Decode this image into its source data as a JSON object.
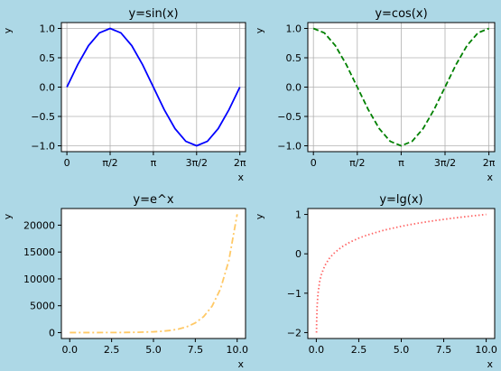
{
  "chart_data": [
    {
      "id": "sin",
      "type": "line",
      "title": "y=sin(x)",
      "xlabel": "x",
      "ylabel": "y",
      "grid": true,
      "xlim": [
        -0.2,
        6.49
      ],
      "ylim": [
        -1.1,
        1.1
      ],
      "xticks": [
        0,
        1.5708,
        3.1416,
        4.7124,
        6.2832
      ],
      "xticklabels": [
        "0",
        "π/2",
        "π",
        "3π/2",
        "2π"
      ],
      "yticks": [
        -1.0,
        -0.5,
        0.0,
        0.5,
        1.0
      ],
      "yticklabels": [
        "−1.0",
        "−0.5",
        "0.0",
        "0.5",
        "1.0"
      ],
      "series": [
        {
          "color": "#0000ff",
          "linestyle": "solid",
          "x": [
            0,
            0.3927,
            0.7854,
            1.1781,
            1.5708,
            1.9635,
            2.3562,
            2.7489,
            3.1416,
            3.5343,
            3.927,
            4.3197,
            4.7124,
            5.1051,
            5.4978,
            5.8905,
            6.2832
          ],
          "y": [
            0,
            0.383,
            0.707,
            0.924,
            1.0,
            0.924,
            0.707,
            0.383,
            0,
            -0.383,
            -0.707,
            -0.924,
            -1.0,
            -0.924,
            -0.707,
            -0.383,
            0
          ]
        }
      ]
    },
    {
      "id": "cos",
      "type": "line",
      "title": "y=cos(x)",
      "xlabel": "x",
      "ylabel": "y",
      "grid": true,
      "xlim": [
        -0.2,
        6.49
      ],
      "ylim": [
        -1.1,
        1.1
      ],
      "xticks": [
        0,
        1.5708,
        3.1416,
        4.7124,
        6.2832
      ],
      "xticklabels": [
        "0",
        "π/2",
        "π",
        "3π/2",
        "2π"
      ],
      "yticks": [
        -1.0,
        -0.5,
        0.0,
        0.5,
        1.0
      ],
      "yticklabels": [
        "−1.0",
        "−0.5",
        "0.0",
        "0.5",
        "1.0"
      ],
      "series": [
        {
          "color": "#008000",
          "linestyle": "dashed",
          "x": [
            0,
            0.3927,
            0.7854,
            1.1781,
            1.5708,
            1.9635,
            2.3562,
            2.7489,
            3.1416,
            3.5343,
            3.927,
            4.3197,
            4.7124,
            5.1051,
            5.4978,
            5.8905,
            6.2832
          ],
          "y": [
            1.0,
            0.924,
            0.707,
            0.383,
            0,
            -0.383,
            -0.707,
            -0.924,
            -1.0,
            -0.924,
            -0.707,
            -0.383,
            0,
            0.383,
            0.707,
            0.924,
            1.0
          ]
        }
      ]
    },
    {
      "id": "exp",
      "type": "line",
      "title": "y=e^x",
      "xlabel": "x",
      "ylabel": "y",
      "grid": false,
      "xlim": [
        -0.5,
        10.5
      ],
      "ylim": [
        -1100,
        23100
      ],
      "xticks": [
        0,
        2.5,
        5,
        7.5,
        10
      ],
      "xticklabels": [
        "0.0",
        "2.5",
        "5.0",
        "7.5",
        "10.0"
      ],
      "yticks": [
        0,
        5000,
        10000,
        15000,
        20000
      ],
      "yticklabels": [
        "0",
        "5000",
        "10000",
        "15000",
        "20000"
      ],
      "series": [
        {
          "color": "#ffa500",
          "opacity": 0.6,
          "linestyle": "dashdot",
          "x": [
            0,
            1,
            2,
            3,
            4,
            5,
            5.5,
            6,
            6.5,
            7,
            7.5,
            8,
            8.5,
            9,
            9.5,
            10
          ],
          "y": [
            1,
            3,
            7,
            20,
            55,
            148,
            245,
            403,
            665,
            1097,
            1808,
            2981,
            4915,
            8103,
            13360,
            22026
          ]
        }
      ]
    },
    {
      "id": "lg",
      "type": "line",
      "title": "y=lg(x)",
      "xlabel": "x",
      "ylabel": "y",
      "grid": false,
      "xlim": [
        -0.5,
        10.5
      ],
      "ylim": [
        -2.15,
        1.15
      ],
      "xticks": [
        0,
        2.5,
        5,
        7.5,
        10
      ],
      "xticklabels": [
        "0.0",
        "2.5",
        "5.0",
        "7.5",
        "10.0"
      ],
      "yticks": [
        -2,
        -1,
        0,
        1
      ],
      "yticklabels": [
        "−2",
        "−1",
        "0",
        "1"
      ],
      "series": [
        {
          "color": "#ff0000",
          "opacity": 0.6,
          "linestyle": "dotted",
          "x": [
            0.01,
            0.02,
            0.05,
            0.1,
            0.2,
            0.3,
            0.5,
            0.75,
            1,
            1.5,
            2,
            2.5,
            3,
            4,
            5,
            6,
            7,
            8,
            9,
            10
          ],
          "y": [
            -2,
            -1.699,
            -1.301,
            -1,
            -0.699,
            -0.523,
            -0.301,
            -0.125,
            0,
            0.176,
            0.301,
            0.398,
            0.477,
            0.602,
            0.699,
            0.778,
            0.845,
            0.903,
            0.954,
            1.0
          ]
        }
      ]
    }
  ]
}
